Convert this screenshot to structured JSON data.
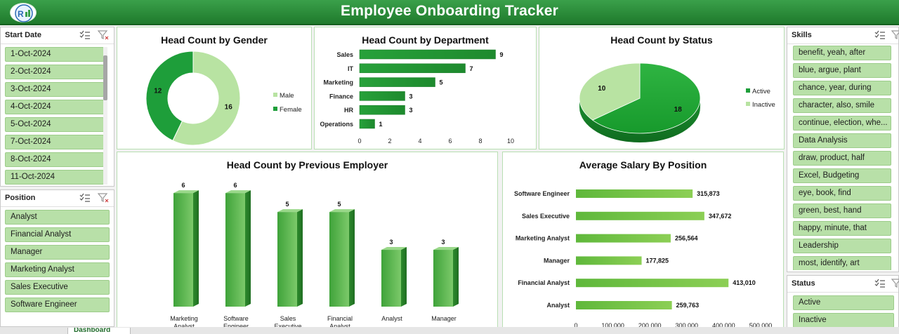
{
  "header": {
    "title": "Employee Onboarding Tracker"
  },
  "slicers": {
    "start_date": {
      "label": "Start Date",
      "items": [
        "1-Oct-2024",
        "2-Oct-2024",
        "3-Oct-2024",
        "4-Oct-2024",
        "5-Oct-2024",
        "7-Oct-2024",
        "8-Oct-2024",
        "11-Oct-2024"
      ]
    },
    "position": {
      "label": "Position",
      "items": [
        "Analyst",
        "Financial Analyst",
        "Manager",
        "Marketing Analyst",
        "Sales Executive",
        "Software Engineer"
      ]
    },
    "skills": {
      "label": "Skills",
      "items": [
        "benefit, yeah, after",
        "blue, argue, plant",
        "chance, year, during",
        "character, also, smile",
        "continue, election, whe...",
        "Data Analysis",
        "draw, product, half",
        "Excel, Budgeting",
        "eye, book, find",
        "green, best, hand",
        "happy, minute, that",
        "Leadership",
        "most, identify, art"
      ]
    },
    "status": {
      "label": "Status",
      "items": [
        "Active",
        "Inactive"
      ]
    }
  },
  "icons": [
    "multi-select-icon",
    "clear-filter-icon"
  ],
  "colors": {
    "dark_green": "#1e9e3a",
    "light_green": "#b8e3a2",
    "bar_green": "#4caf3f",
    "header_green": "#2e8b3c"
  },
  "sheet_tab": {
    "label": "Dashboard"
  },
  "chart_data": [
    {
      "type": "pie",
      "title": "Head Count by Gender",
      "donut": true,
      "categories": [
        "Male",
        "Female"
      ],
      "values": [
        16,
        12
      ],
      "legend": "right"
    },
    {
      "type": "bar",
      "orientation": "horizontal",
      "title": "Head Count by Department",
      "categories": [
        "Sales",
        "IT",
        "Marketing",
        "Finance",
        "HR",
        "Operations"
      ],
      "values": [
        9,
        7,
        5,
        3,
        3,
        1
      ],
      "xlim": [
        0,
        10
      ],
      "xticks": [
        0,
        2,
        4,
        6,
        8,
        10
      ]
    },
    {
      "type": "pie",
      "title": "Head Count by Status",
      "categories": [
        "Active",
        "Inactive"
      ],
      "values": [
        18,
        10
      ],
      "legend": "right"
    },
    {
      "type": "bar",
      "title": "Head Count by Previous Employer",
      "categories": [
        "Marketing Analyst",
        "Software Engineer",
        "Sales Executive",
        "Financial Analyst",
        "Analyst",
        "Manager"
      ],
      "values": [
        6,
        6,
        5,
        5,
        3,
        3
      ]
    },
    {
      "type": "bar",
      "orientation": "horizontal",
      "title": "Average Salary By Position",
      "categories": [
        "Software Engineer",
        "Sales Executive",
        "Marketing Analyst",
        "Manager",
        "Financial Analyst",
        "Analyst"
      ],
      "values": [
        315873,
        347672,
        256564,
        177825,
        413010,
        259763
      ],
      "value_labels": [
        "315,873",
        "347,672",
        "256,564",
        "177,825",
        "413,010",
        "259,763"
      ],
      "xlim": [
        0,
        500000
      ],
      "xticks": [
        "0",
        "100,000",
        "200,000",
        "300,000",
        "400,000",
        "500,000"
      ]
    }
  ]
}
